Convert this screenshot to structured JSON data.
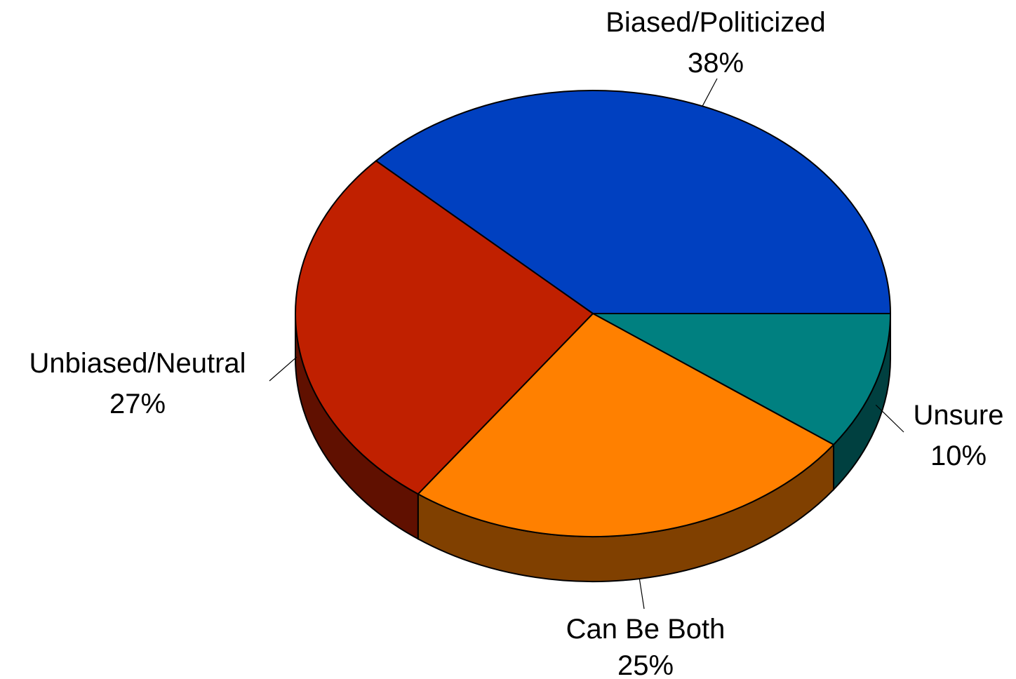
{
  "chart_data": {
    "type": "pie",
    "title": "",
    "slices": [
      {
        "label": "Biased/Politicized",
        "value": 38,
        "pct_label": "38%",
        "color": "#0040C0",
        "side_color": "#002070"
      },
      {
        "label": "Unsure",
        "value": 10,
        "pct_label": "10%",
        "color": "#008080",
        "side_color": "#004040"
      },
      {
        "label": "Can Be Both",
        "value": 25,
        "pct_label": "25%",
        "color": "#FF8000",
        "side_color": "#804000"
      },
      {
        "label": "Unbiased/Neutral",
        "value": 27,
        "pct_label": "27%",
        "color": "#C02000",
        "side_color": "#601000"
      }
    ]
  }
}
